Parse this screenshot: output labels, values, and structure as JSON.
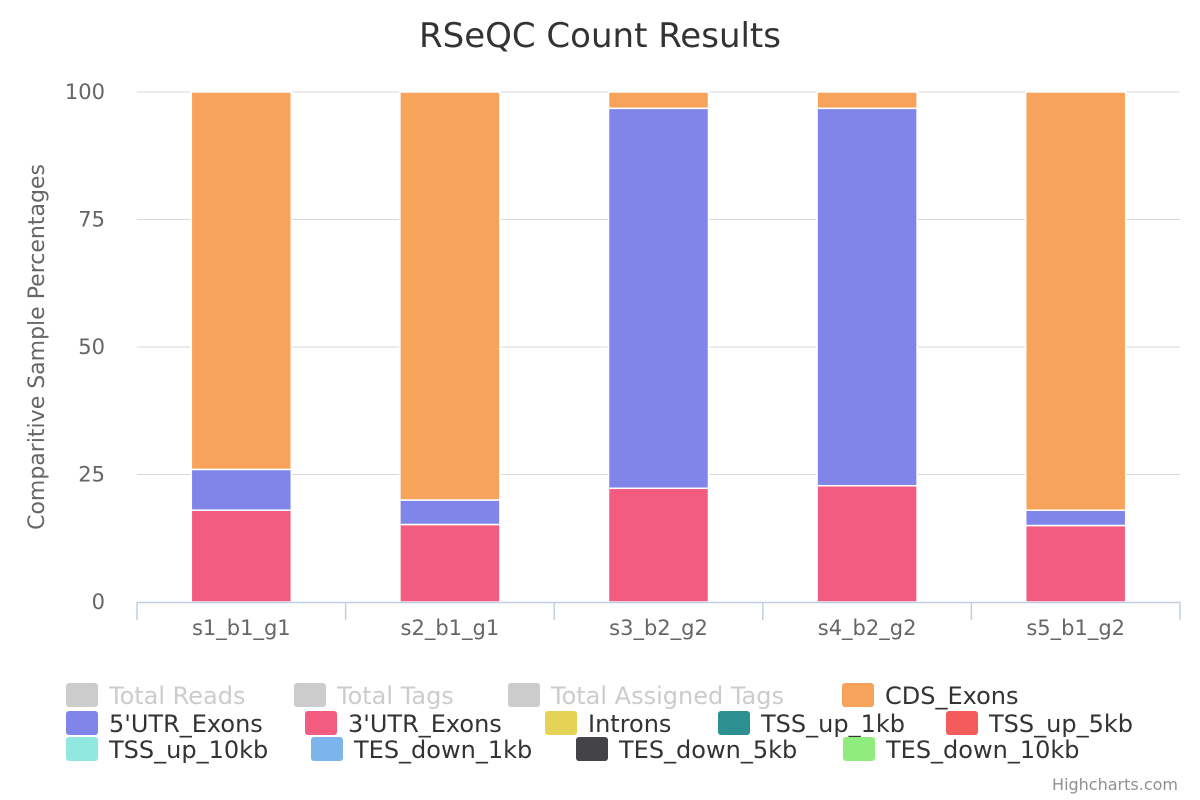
{
  "chart_data": {
    "type": "bar",
    "stacking": "percent",
    "title": "RSeQC Count Results",
    "ylabel": "Comparitive Sample Percentages",
    "ylim": [
      0,
      100
    ],
    "yticks": [
      0,
      25,
      50,
      75,
      100
    ],
    "categories": [
      "s1_b1_g1",
      "s2_b1_g1",
      "s3_b2_g2",
      "s4_b2_g2",
      "s5_b1_g2"
    ],
    "grid": true,
    "legend_position": "bottom",
    "series": [
      {
        "name": "Total Reads",
        "color": "#cccccc",
        "visible": false,
        "values": [
          null,
          null,
          null,
          null,
          null
        ]
      },
      {
        "name": "Total Tags",
        "color": "#cccccc",
        "visible": false,
        "values": [
          null,
          null,
          null,
          null,
          null
        ]
      },
      {
        "name": "Total Assigned Tags",
        "color": "#cccccc",
        "visible": false,
        "values": [
          null,
          null,
          null,
          null,
          null
        ]
      },
      {
        "name": "CDS_Exons",
        "color": "#f7a35c",
        "visible": true,
        "values": [
          74,
          80,
          3.2,
          3.2,
          82
        ]
      },
      {
        "name": "5'UTR_Exons",
        "color": "#8085e9",
        "visible": true,
        "values": [
          8,
          4.8,
          74.5,
          74,
          3
        ]
      },
      {
        "name": "3'UTR_Exons",
        "color": "#f15c80",
        "visible": true,
        "values": [
          18,
          15.2,
          22.3,
          22.8,
          15
        ]
      },
      {
        "name": "Introns",
        "color": "#e4d354",
        "visible": true,
        "values": [
          0,
          0,
          0,
          0,
          0
        ]
      },
      {
        "name": "TSS_up_1kb",
        "color": "#2b908f",
        "visible": true,
        "values": [
          0,
          0,
          0,
          0,
          0
        ]
      },
      {
        "name": "TSS_up_5kb",
        "color": "#f45b5b",
        "visible": true,
        "values": [
          0,
          0,
          0,
          0,
          0
        ]
      },
      {
        "name": "TSS_up_10kb",
        "color": "#91e8e1",
        "visible": true,
        "values": [
          0,
          0,
          0,
          0,
          0
        ]
      },
      {
        "name": "TES_down_1kb",
        "color": "#7cb5ec",
        "visible": true,
        "values": [
          0,
          0,
          0,
          0,
          0
        ]
      },
      {
        "name": "TES_down_5kb",
        "color": "#434348",
        "visible": true,
        "values": [
          0,
          0,
          0,
          0,
          0
        ]
      },
      {
        "name": "TES_down_10kb",
        "color": "#90ed7d",
        "visible": true,
        "values": [
          0,
          0,
          0,
          0,
          0
        ]
      }
    ],
    "stack_order_bottom_to_top": [
      "3'UTR_Exons",
      "5'UTR_Exons",
      "CDS_Exons"
    ]
  },
  "credits": "Highcharts.com",
  "colors": {
    "hidden_legend_text": "#cccccc",
    "legend_text": "#333333",
    "grid": "#d8d8d8",
    "axis": "#c0d0e0"
  }
}
